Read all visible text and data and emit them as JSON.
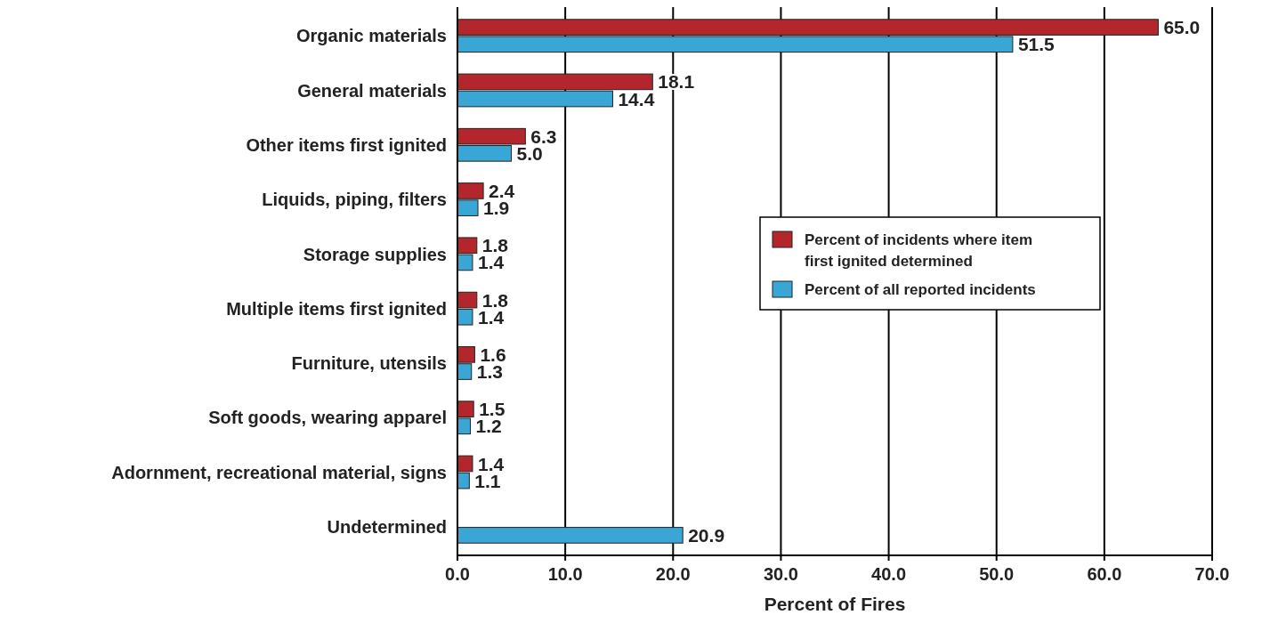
{
  "chart_data": {
    "type": "bar",
    "orientation": "horizontal",
    "xlabel": "Percent of Fires",
    "categories": [
      "Organic materials",
      "General materials",
      "Other items first ignited",
      "Liquids, piping, filters",
      "Storage supplies",
      "Multiple items first ignited",
      "Furniture, utensils",
      "Soft goods, wearing apparel",
      "Adornment, recreational material, signs",
      "Undetermined"
    ],
    "series": [
      {
        "name": "Percent of incidents where item first ignited determined",
        "color": "#b3272c",
        "values": [
          65.0,
          18.1,
          6.3,
          2.4,
          1.8,
          1.8,
          1.6,
          1.5,
          1.4,
          null
        ],
        "value_labels": [
          "65.0",
          "18.1",
          "6.3",
          "2.4",
          "1.8",
          "1.8",
          "1.6",
          "1.5",
          "1.4",
          null
        ]
      },
      {
        "name": "Percent of all reported incidents",
        "color": "#3aa6d6",
        "values": [
          51.5,
          14.4,
          5.0,
          1.9,
          1.4,
          1.4,
          1.3,
          1.2,
          1.1,
          20.9
        ],
        "value_labels": [
          "51.5",
          "14.4",
          "5.0",
          "1.9",
          "1.4",
          "1.4",
          "1.3",
          "1.2",
          "1.1",
          "20.9"
        ]
      }
    ],
    "xlim": [
      0,
      70
    ],
    "xticks": [
      {
        "value": 0,
        "label": "0.0"
      },
      {
        "value": 10,
        "label": "10.0"
      },
      {
        "value": 20,
        "label": "20.0"
      },
      {
        "value": 30,
        "label": "30.0"
      },
      {
        "value": 40,
        "label": "40.0"
      },
      {
        "value": 50,
        "label": "50.0"
      },
      {
        "value": 60,
        "label": "60.0"
      },
      {
        "value": 70,
        "label": "70.0"
      }
    ],
    "grid": "x",
    "legend": "right"
  }
}
